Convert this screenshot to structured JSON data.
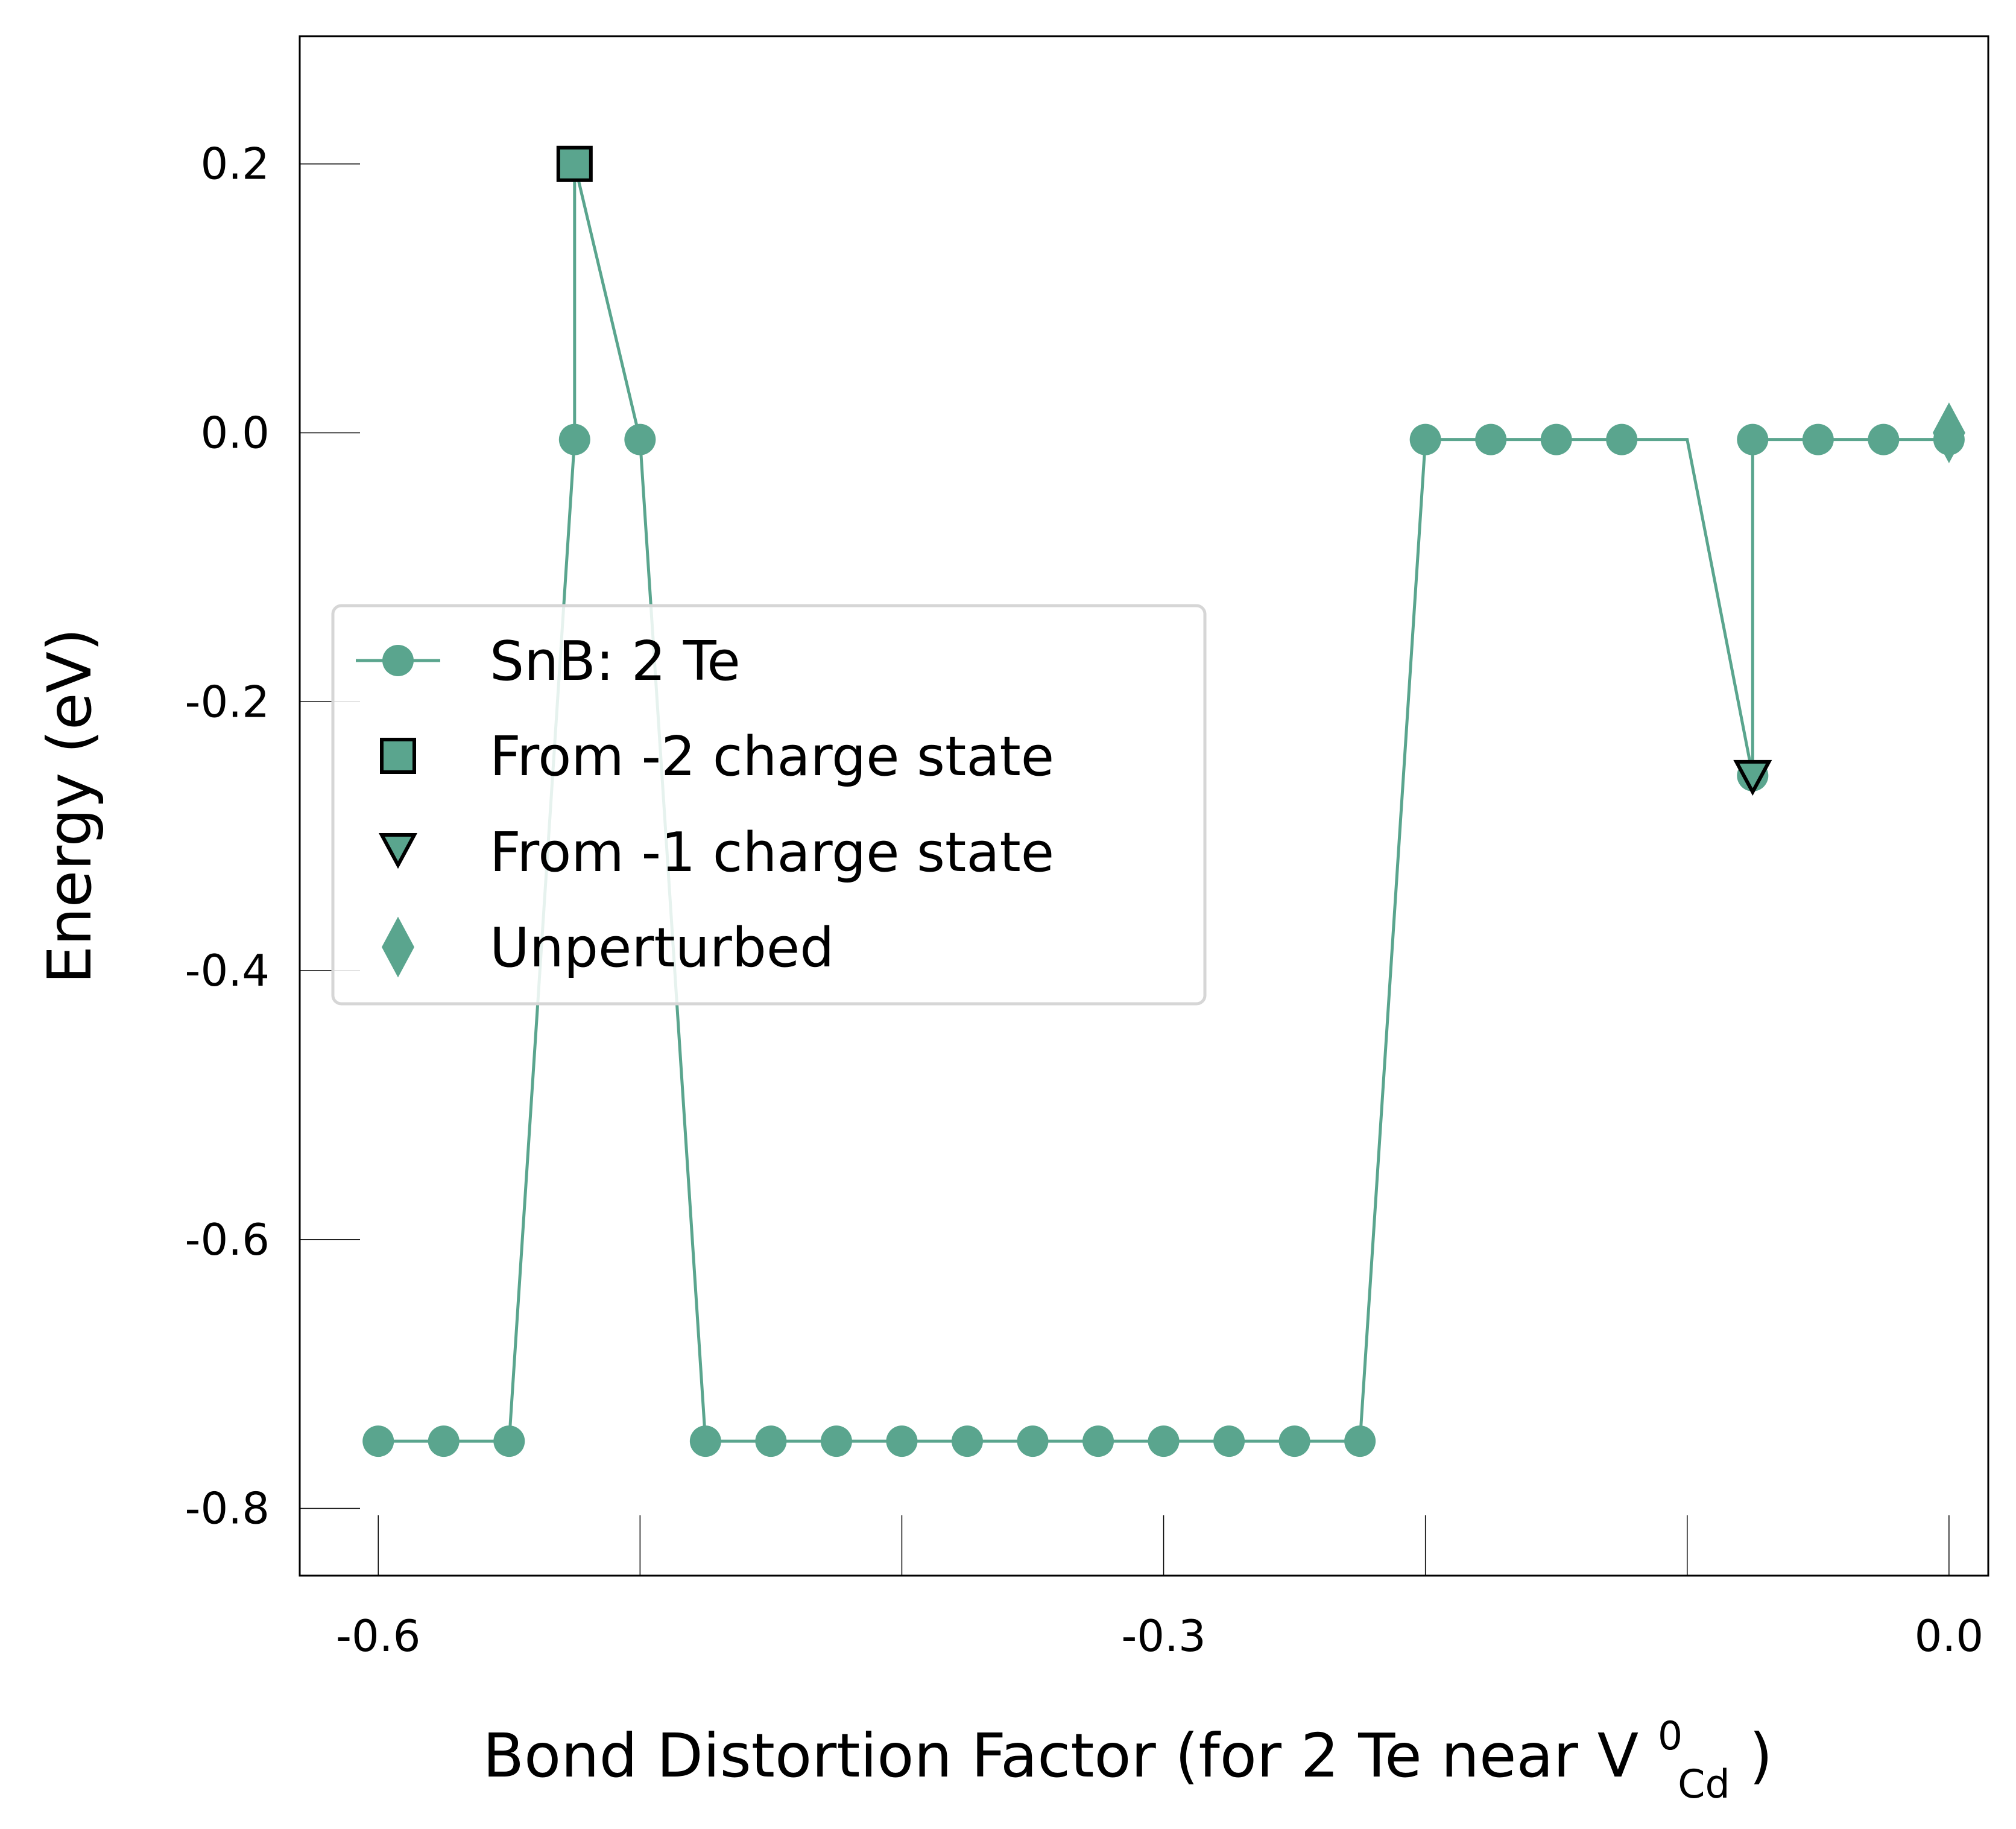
{
  "chart_data": {
    "type": "line",
    "xlabel": "Bond Distortion Factor (for 2 Te near V",
    "xlabel_sup": "0",
    "xlabel_sub": "Cd",
    "xlabel_end": ")",
    "ylabel": "Energy (eV)",
    "xlim": [
      -0.63,
      0.015
    ],
    "ylim": [
      -0.85,
      0.295
    ],
    "x_tick_values": [
      -0.6,
      -0.5,
      -0.4,
      -0.3,
      -0.2,
      -0.1,
      0.0
    ],
    "x_tick_labels": [
      "-0.6",
      "",
      "",
      "-0.3",
      "",
      "",
      "0.0"
    ],
    "y_tick_values": [
      0.2,
      0.0,
      -0.2,
      -0.4,
      -0.6,
      -0.8
    ],
    "y_tick_labels": [
      "0.2",
      "0.0",
      "-0.2",
      "-0.4",
      "-0.6",
      "-0.8"
    ],
    "grid": false,
    "legend_position": "center-left",
    "colors": {
      "series": "#5aa58e",
      "edge": "#000000",
      "axis": "#000000"
    },
    "series": [
      {
        "name": "SnB: 2 Te",
        "marker": "circle",
        "points": [
          {
            "x": -0.6,
            "y": -0.75
          },
          {
            "x": -0.575,
            "y": -0.75
          },
          {
            "x": -0.55,
            "y": -0.75
          },
          {
            "x": -0.525,
            "y": -0.005
          },
          {
            "x": -0.525,
            "y": 0.2
          },
          {
            "x": -0.5,
            "y": -0.005
          },
          {
            "x": -0.475,
            "y": -0.75
          },
          {
            "x": -0.45,
            "y": -0.75
          },
          {
            "x": -0.425,
            "y": -0.75
          },
          {
            "x": -0.4,
            "y": -0.75
          },
          {
            "x": -0.375,
            "y": -0.75
          },
          {
            "x": -0.35,
            "y": -0.75
          },
          {
            "x": -0.325,
            "y": -0.75
          },
          {
            "x": -0.3,
            "y": -0.75
          },
          {
            "x": -0.275,
            "y": -0.75
          },
          {
            "x": -0.25,
            "y": -0.75
          },
          {
            "x": -0.225,
            "y": -0.75
          },
          {
            "x": -0.2,
            "y": -0.005
          },
          {
            "x": -0.175,
            "y": -0.005
          },
          {
            "x": -0.15,
            "y": -0.005
          },
          {
            "x": -0.125,
            "y": -0.005
          },
          {
            "x": -0.1,
            "y": -0.005
          },
          {
            "x": -0.075,
            "y": -0.255
          },
          {
            "x": -0.075,
            "y": -0.005
          },
          {
            "x": -0.05,
            "y": -0.005
          },
          {
            "x": -0.025,
            "y": -0.005
          },
          {
            "x": 0.0,
            "y": -0.005
          }
        ],
        "hidden_marker_indices": [
          4,
          21
        ]
      },
      {
        "name": "From -2 charge state",
        "marker": "square",
        "points": [
          {
            "x": -0.525,
            "y": 0.2
          }
        ]
      },
      {
        "name": "From -1 charge state",
        "marker": "triangle-down",
        "points": [
          {
            "x": -0.075,
            "y": -0.255
          }
        ]
      },
      {
        "name": "Unperturbed",
        "marker": "diamond",
        "points": [
          {
            "x": 0.0,
            "y": 0.0
          }
        ]
      }
    ]
  }
}
